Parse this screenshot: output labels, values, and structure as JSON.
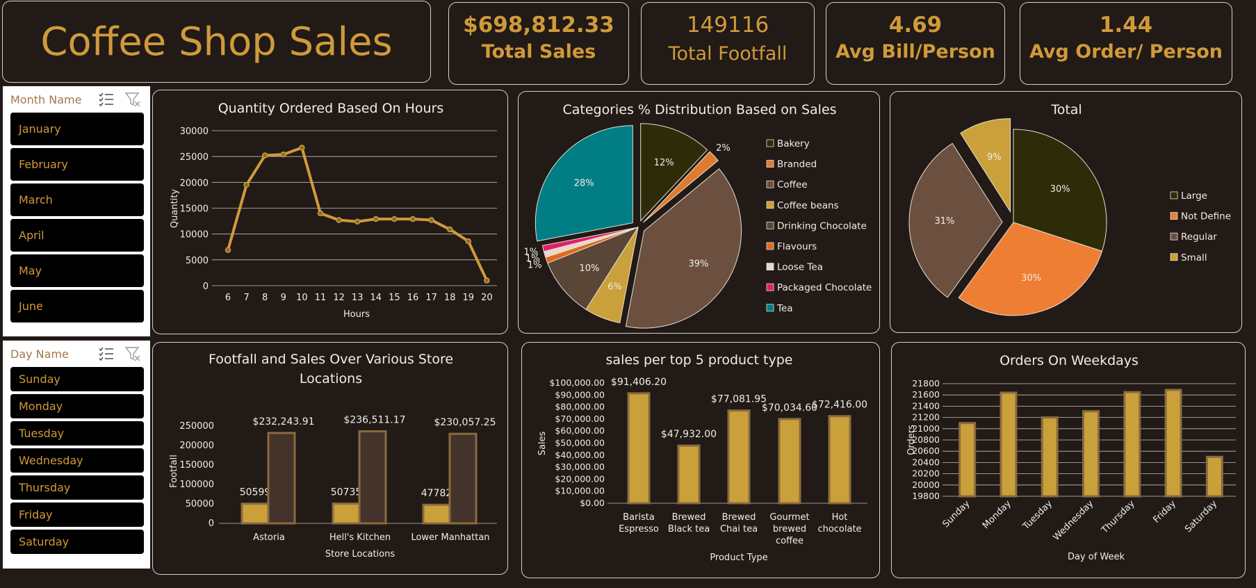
{
  "dashboard": {
    "title": "Coffee Shop Sales"
  },
  "kpis": [
    {
      "value": "$698,812.33",
      "label": "Total Sales"
    },
    {
      "value": "149116",
      "label": "Total Footfall"
    },
    {
      "value": "4.69",
      "label": "Avg Bill/Person"
    },
    {
      "value": "1.44",
      "label": "Avg Order/ Person"
    }
  ],
  "slicers": {
    "month": {
      "header": "Month Name",
      "items": [
        "January",
        "February",
        "March",
        "April",
        "May",
        "June"
      ]
    },
    "day": {
      "header": "Day Name",
      "items": [
        "Sunday",
        "Monday",
        "Tuesday",
        "Wednesday",
        "Thursday",
        "Friday",
        "Saturday"
      ]
    }
  },
  "colors": {
    "accent": "#d09a3a",
    "background": "#211a16",
    "border": "#d8d2c8"
  },
  "icons": [
    "multi-select-icon",
    "clear-filter-icon"
  ],
  "chart_data": [
    {
      "type": "line",
      "title": "Quantity Ordered Based On Hours",
      "xlabel": "Hours",
      "ylabel": "Quantity",
      "x": [
        6,
        7,
        8,
        9,
        10,
        11,
        12,
        13,
        14,
        15,
        16,
        17,
        18,
        19,
        20
      ],
      "values": [
        6900,
        19500,
        25200,
        25400,
        26700,
        14000,
        12700,
        12400,
        12900,
        12900,
        12900,
        12700,
        10900,
        8600,
        1000
      ],
      "ylim": [
        0,
        30000
      ],
      "yticks": [
        "30000",
        "25000",
        "20000",
        "15000",
        "10000",
        "5000",
        "0"
      ],
      "grid": true,
      "color": "#d09a3a"
    },
    {
      "type": "pie",
      "title": "Categories % Distribution Based on Sales",
      "legend_position": "right",
      "slices": [
        {
          "name": "Bakery",
          "value": 12,
          "label": "12%",
          "color": "#2e2c08"
        },
        {
          "name": "Branded",
          "value": 2,
          "label": "2%",
          "color": "#e07a30"
        },
        {
          "name": "Coffee",
          "value": 39,
          "label": "39%",
          "color": "#6b5040"
        },
        {
          "name": "Coffee beans",
          "value": 6,
          "label": "6%",
          "color": "#c9a03a"
        },
        {
          "name": "Drinking Chocolate",
          "value": 10,
          "label": "10%",
          "color": "#5a4636"
        },
        {
          "name": "Flavours",
          "value": 1,
          "label": "1%",
          "color": "#e06a20"
        },
        {
          "name": "Loose Tea",
          "value": 1,
          "label": "1%",
          "color": "#e8d8cc"
        },
        {
          "name": "Packaged Chocolate",
          "value": 1,
          "label": "1%",
          "color": "#e0206a"
        },
        {
          "name": "Tea",
          "value": 28,
          "label": "28%",
          "color": "#007e84"
        }
      ]
    },
    {
      "type": "pie",
      "title": "Total",
      "legend_position": "right",
      "slices": [
        {
          "name": "Large",
          "value": 30,
          "label": "30%",
          "color": "#2e2c08"
        },
        {
          "name": "Not Define",
          "value": 30,
          "label": "30%",
          "color": "#ee7e33"
        },
        {
          "name": "Regular",
          "value": 31,
          "label": "31%",
          "color": "#6b5040"
        },
        {
          "name": "Small",
          "value": 9,
          "label": "9%",
          "color": "#c9a03a"
        }
      ]
    },
    {
      "type": "bar",
      "title": "Footfall and Sales Over Various Store Locations",
      "xlabel": "Store Locations",
      "ylabel": "Footfall",
      "categories": [
        "Astoria",
        "Hell's Kitchen",
        "Lower Manhattan"
      ],
      "series": [
        {
          "values": [
            50599,
            50735,
            47782
          ],
          "labels": [
            "50599",
            "50735",
            "47782"
          ],
          "color": "#c9a03a"
        },
        {
          "values": [
            232243.91,
            236511.17,
            230057.25
          ],
          "labels": [
            "$232,243.91",
            "$236,511.17",
            "$230,057.25"
          ],
          "color": "#44332a"
        }
      ],
      "ylim": [
        0,
        250000
      ],
      "yticks": [
        "250000",
        "200000",
        "150000",
        "100000",
        "50000",
        "0"
      ]
    },
    {
      "type": "bar",
      "title": "sales per top 5 product type",
      "xlabel": "Product Type",
      "ylabel": "Sales",
      "categories": [
        "Barista Espresso",
        "Brewed Black tea",
        "Brewed Chai tea",
        "Gourmet brewed coffee",
        "Hot chocolate"
      ],
      "category_lines": [
        [
          "Barista",
          "Espresso"
        ],
        [
          "Brewed",
          "Black tea"
        ],
        [
          "Brewed",
          "Chai tea"
        ],
        [
          "Gourmet",
          "brewed",
          "coffee"
        ],
        [
          "Hot",
          "chocolate"
        ]
      ],
      "values": [
        91406.2,
        47932.0,
        77081.95,
        70034.6,
        72416.0
      ],
      "value_labels": [
        "$91,406.20",
        "$47,932.00",
        "$77,081.95",
        "$70,034.60",
        "$72,416.00"
      ],
      "ylim": [
        0,
        100000
      ],
      "yticks": [
        "$100,000.00",
        "$90,000.00",
        "$80,000.00",
        "$70,000.00",
        "$60,000.00",
        "$50,000.00",
        "$40,000.00",
        "$30,000.00",
        "$20,000.00",
        "$10,000.00",
        "$0.00"
      ],
      "color": "#c9a03a"
    },
    {
      "type": "bar",
      "title": "Orders On Weekdays",
      "xlabel": "Day of Week",
      "ylabel": "Orders",
      "categories": [
        "Sunday",
        "Monday",
        "Tuesday",
        "Wednesday",
        "Thursday",
        "Friday",
        "Saturday"
      ],
      "values": [
        21100,
        21640,
        21200,
        21310,
        21650,
        21690,
        20500
      ],
      "ylim": [
        19800,
        21800
      ],
      "yticks": [
        "21800",
        "21600",
        "21400",
        "21200",
        "21000",
        "20800",
        "20600",
        "20400",
        "20200",
        "20000",
        "19800"
      ],
      "grid": true,
      "color": "#c9a03a"
    }
  ]
}
